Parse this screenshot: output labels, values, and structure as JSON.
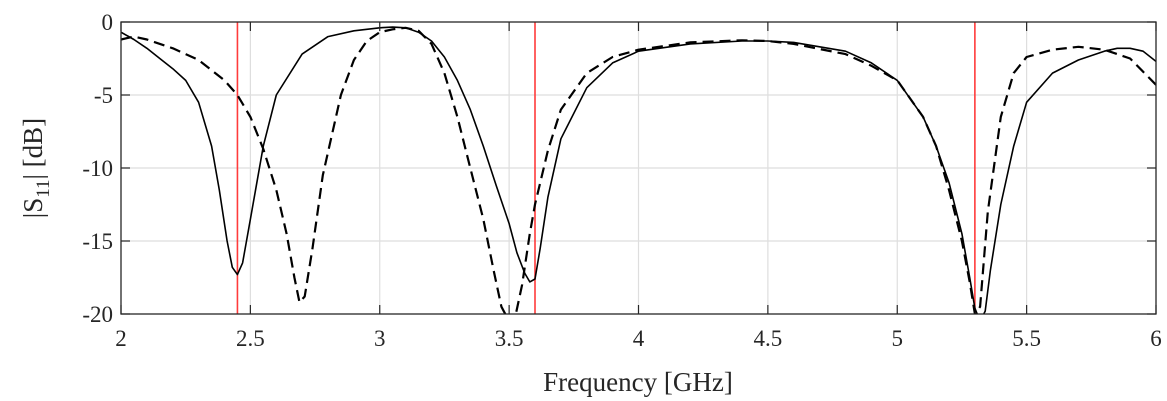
{
  "chart_data": {
    "type": "line",
    "xlabel": "Frequency [GHz]",
    "ylabel_parts": {
      "pre": "|S",
      "sub": "11",
      "post": "| [dB]"
    },
    "xlim": [
      2,
      6
    ],
    "ylim": [
      -20,
      0
    ],
    "x_ticks": [
      2,
      2.5,
      3,
      3.5,
      4,
      4.5,
      5,
      5.5,
      6
    ],
    "x_tick_labels": [
      "2",
      "2.5",
      "3",
      "3.5",
      "4",
      "4.5",
      "5",
      "5.5",
      "6"
    ],
    "y_ticks": [
      0,
      -5,
      -10,
      -15,
      -20
    ],
    "y_tick_labels": [
      "0",
      "-5",
      "-10",
      "-15",
      "-20"
    ],
    "grid": true,
    "reference_lines": {
      "color": "#ff3b3b",
      "x": [
        2.45,
        3.6,
        5.3
      ]
    },
    "series": [
      {
        "style": "solid",
        "color": "#000000",
        "x": [
          2.0,
          2.05,
          2.1,
          2.15,
          2.2,
          2.25,
          2.3,
          2.35,
          2.38,
          2.41,
          2.43,
          2.45,
          2.47,
          2.5,
          2.55,
          2.6,
          2.7,
          2.8,
          2.9,
          3.0,
          3.05,
          3.1,
          3.15,
          3.2,
          3.25,
          3.3,
          3.35,
          3.4,
          3.45,
          3.5,
          3.53,
          3.56,
          3.58,
          3.6,
          3.62,
          3.65,
          3.7,
          3.8,
          3.9,
          4.0,
          4.2,
          4.4,
          4.5,
          4.6,
          4.8,
          4.9,
          5.0,
          5.1,
          5.15,
          5.2,
          5.25,
          5.28,
          5.3,
          5.32,
          5.34,
          5.36,
          5.4,
          5.45,
          5.5,
          5.6,
          5.7,
          5.8,
          5.85,
          5.9,
          5.95,
          6.0
        ],
        "y": [
          -0.7,
          -1.2,
          -1.8,
          -2.5,
          -3.2,
          -4.0,
          -5.5,
          -8.5,
          -11.5,
          -15.0,
          -16.8,
          -17.3,
          -16.5,
          -13.5,
          -8.5,
          -5.0,
          -2.2,
          -1.0,
          -0.6,
          -0.4,
          -0.35,
          -0.4,
          -0.7,
          -1.3,
          -2.4,
          -4.0,
          -6.0,
          -8.5,
          -11.2,
          -13.8,
          -15.8,
          -17.2,
          -17.8,
          -17.6,
          -15.5,
          -12.0,
          -8.0,
          -4.5,
          -2.8,
          -2.0,
          -1.5,
          -1.3,
          -1.3,
          -1.4,
          -2.0,
          -2.8,
          -4.0,
          -6.5,
          -8.5,
          -11.0,
          -14.5,
          -17.5,
          -19.6,
          -20.5,
          -19.8,
          -17.0,
          -12.5,
          -8.5,
          -5.5,
          -3.5,
          -2.6,
          -2.0,
          -1.8,
          -1.8,
          -2.0,
          -2.7
        ]
      },
      {
        "style": "dashed",
        "color": "#000000",
        "x": [
          2.0,
          2.05,
          2.1,
          2.2,
          2.3,
          2.4,
          2.45,
          2.5,
          2.55,
          2.6,
          2.64,
          2.67,
          2.69,
          2.71,
          2.74,
          2.78,
          2.85,
          2.9,
          2.95,
          3.0,
          3.05,
          3.1,
          3.15,
          3.2,
          3.25,
          3.3,
          3.35,
          3.4,
          3.44,
          3.47,
          3.5,
          3.52,
          3.55,
          3.58,
          3.6,
          3.65,
          3.7,
          3.8,
          3.9,
          4.0,
          4.2,
          4.4,
          4.5,
          4.6,
          4.8,
          4.9,
          5.0,
          5.1,
          5.15,
          5.2,
          5.25,
          5.28,
          5.3,
          5.32,
          5.35,
          5.4,
          5.45,
          5.5,
          5.6,
          5.7,
          5.8,
          5.9,
          6.0
        ],
        "y": [
          -1.2,
          -1.0,
          -1.2,
          -1.8,
          -2.6,
          -4.0,
          -5.0,
          -6.5,
          -8.7,
          -11.5,
          -14.5,
          -17.5,
          -19.2,
          -18.8,
          -15.5,
          -10.5,
          -5.0,
          -2.6,
          -1.3,
          -0.7,
          -0.5,
          -0.4,
          -0.6,
          -1.5,
          -3.5,
          -6.5,
          -10.0,
          -13.5,
          -17.0,
          -19.5,
          -20.5,
          -20.5,
          -18.0,
          -14.5,
          -12.5,
          -8.8,
          -6.0,
          -3.5,
          -2.4,
          -1.9,
          -1.4,
          -1.25,
          -1.3,
          -1.5,
          -2.2,
          -3.0,
          -4.0,
          -6.5,
          -8.5,
          -11.5,
          -15.0,
          -17.8,
          -20.0,
          -19.5,
          -13.0,
          -6.5,
          -3.5,
          -2.4,
          -1.9,
          -1.7,
          -1.9,
          -2.5,
          -4.3
        ]
      }
    ]
  }
}
